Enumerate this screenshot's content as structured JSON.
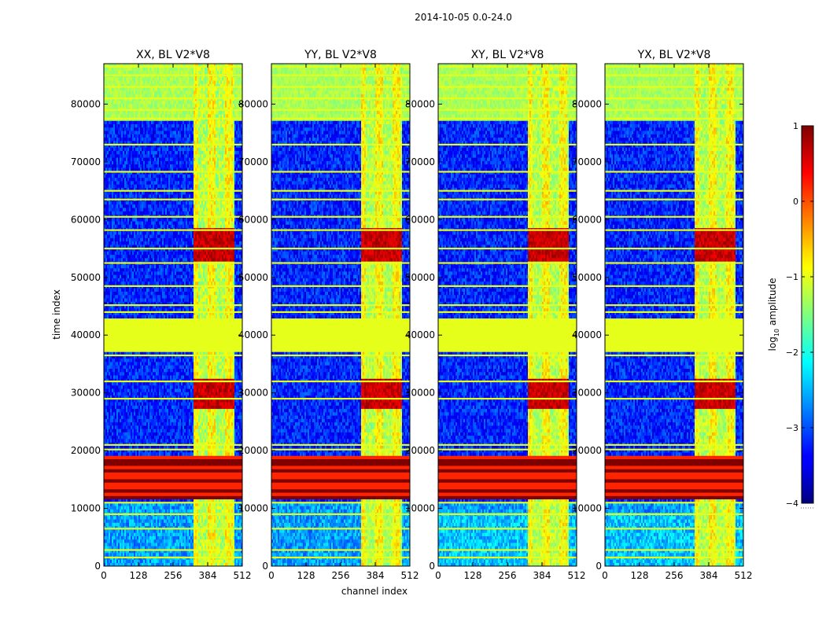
{
  "figure": {
    "suptitle": "2014-10-05 0.0-24.0",
    "ylabel": "time index",
    "xlabel": "channel index",
    "colorbar_label_pre": "log",
    "colorbar_label_sub": "10",
    "colorbar_label_post": " amplitude"
  },
  "chart_data": {
    "type": "heatmap",
    "title": "2014-10-05 0.0-24.0",
    "xlabel": "channel index",
    "ylabel": "time index",
    "xlim": [
      0,
      512
    ],
    "ylim": [
      0,
      87000
    ],
    "xticks": [
      0,
      128,
      256,
      384,
      512
    ],
    "yticks": [
      0,
      10000,
      20000,
      30000,
      40000,
      50000,
      60000,
      70000,
      80000
    ],
    "panels": [
      {
        "title": "XX, BL V2*V8",
        "pol": "XX"
      },
      {
        "title": "YY, BL V2*V8",
        "pol": "YY"
      },
      {
        "title": "XY, BL V2*V8",
        "pol": "XY"
      },
      {
        "title": "YX, BL V2*V8",
        "pol": "YX"
      }
    ],
    "colorbar": {
      "label": "log10 amplitude",
      "range": [
        -4,
        1
      ],
      "ticks": [
        1,
        0,
        -1,
        -2,
        -3,
        -4
      ],
      "tick_labels": [
        "1",
        "0",
        "−1",
        "−2",
        "−3",
        "−4"
      ],
      "colormap": "jet"
    },
    "features": {
      "flagged_time_ranges": [
        [
          37000,
          43000
        ]
      ],
      "flagged_level": -1.0,
      "saturated_time_ranges": [
        [
          11500,
          19000
        ]
      ],
      "saturated_level": 1.0,
      "rfi_channel_range": [
        330,
        480
      ],
      "background_level": -3.2,
      "horizontal_band_rows": [
        1500,
        2800,
        6500,
        9000,
        11000,
        20200,
        21000,
        29000,
        32000,
        36500,
        44000,
        45200,
        48500,
        52500,
        55000,
        58200,
        60500,
        63500,
        65000,
        68300,
        73000,
        77500,
        79000,
        81000,
        83000,
        85000,
        86500
      ]
    }
  }
}
